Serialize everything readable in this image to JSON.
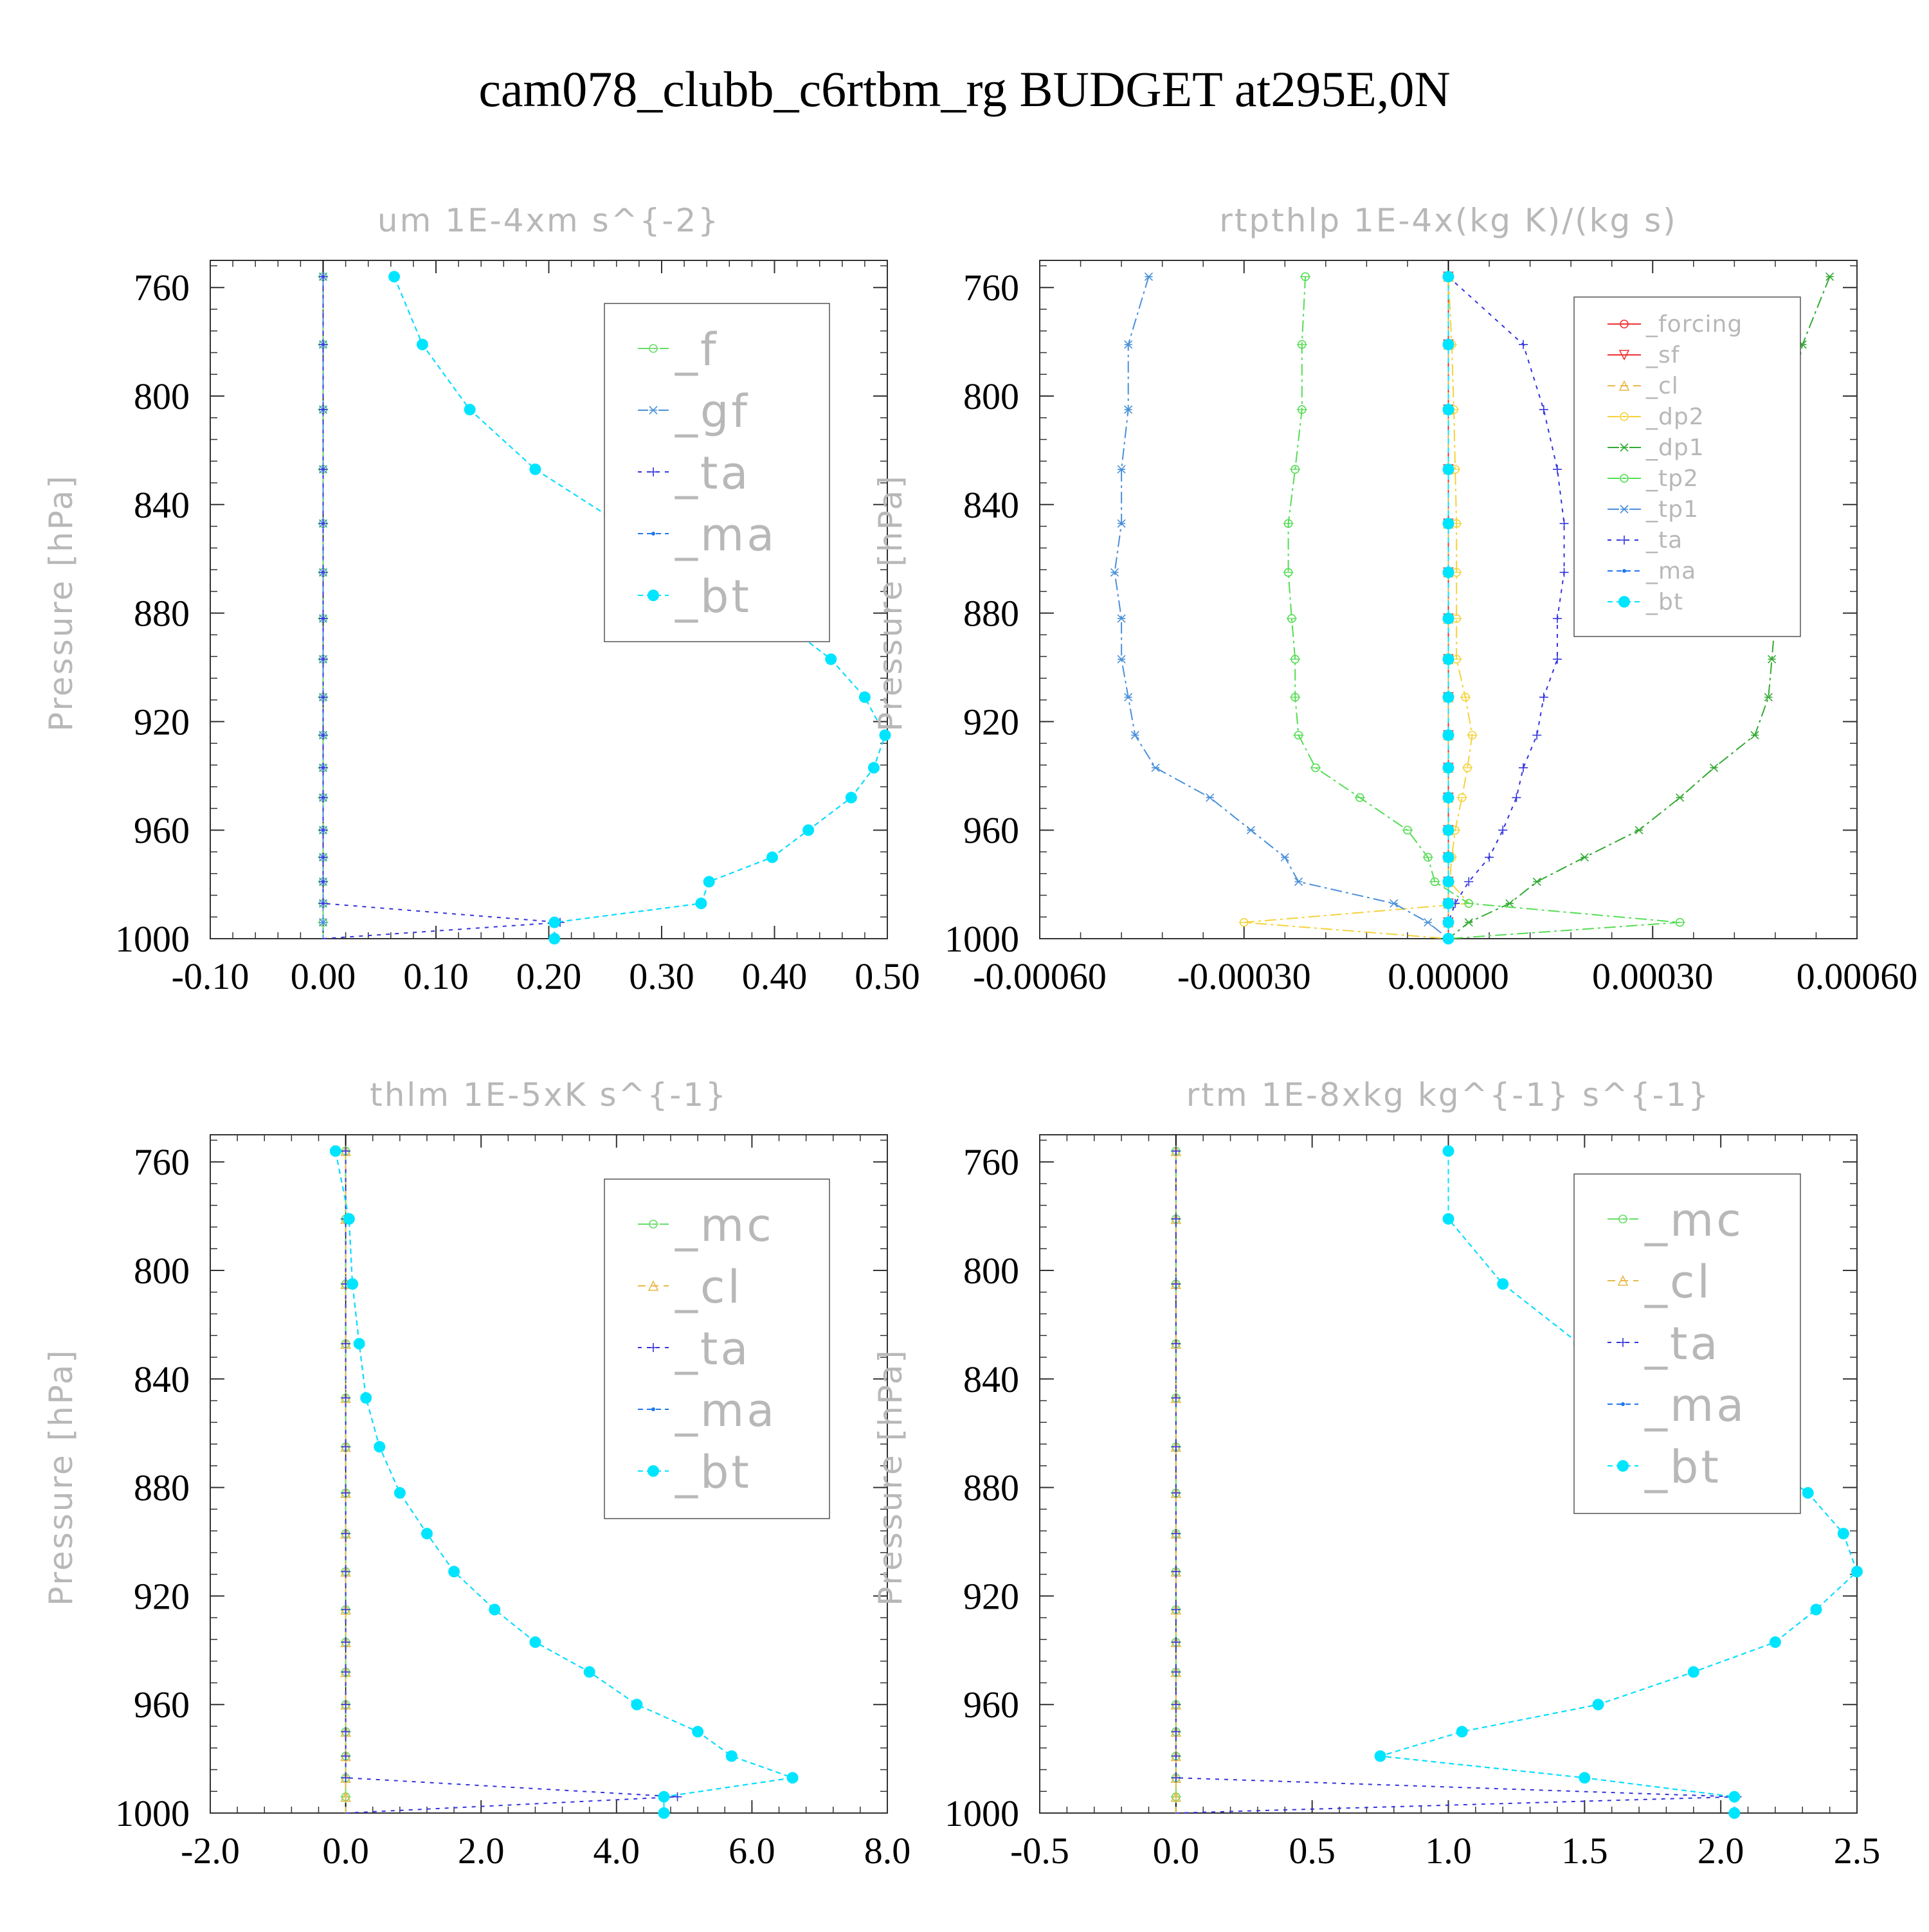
{
  "title": "cam078_clubb_c6rtbm_rg  BUDGET at295E,0N",
  "colors": {
    "f": "#66dd66",
    "gf": "#4a90d9",
    "ta": "#3333dd",
    "ma": "#2277ee",
    "bt": "#00e5ff",
    "forcing": "#ee3333",
    "sf": "#ee3333",
    "cl": "#e8b84a",
    "dp2": "#f5d23a",
    "dp1": "#33aa33",
    "tp2": "#55dd55",
    "tp1": "#4a90d9",
    "mc": "#66dd66",
    "frame": "#333333",
    "muted_text": "#b8b8b8"
  },
  "chart_data": [
    {
      "type": "line",
      "title": "um   1E-4xm s^{-2}",
      "ylabel": "Pressure [hPa]",
      "ylim": [
        1000,
        750
      ],
      "xlim": [
        -0.1,
        0.5
      ],
      "xticks": [
        "-0.10",
        "0.00",
        "0.10",
        "0.20",
        "0.30",
        "0.40",
        "0.50"
      ],
      "xtick_values": [
        -0.1,
        0.0,
        0.1,
        0.2,
        0.3,
        0.4,
        0.5
      ],
      "yticks": [
        "760",
        "800",
        "840",
        "880",
        "920",
        "960",
        "1000"
      ],
      "ytick_values": [
        760,
        800,
        840,
        880,
        920,
        960,
        1000
      ],
      "legend": {
        "placement": "top-right",
        "entries": [
          "_f",
          "_gf",
          "_ta",
          "_ma",
          "_bt"
        ]
      },
      "levels": [
        756,
        781,
        805,
        827,
        847,
        865,
        882,
        897,
        911,
        925,
        937,
        948,
        960,
        970,
        979,
        987,
        994,
        1000
      ],
      "series": [
        {
          "name": "_f",
          "key": "f",
          "values": [
            0,
            0,
            0,
            0,
            0,
            0,
            0,
            0,
            0,
            0,
            0,
            0,
            0,
            0,
            0,
            0,
            0,
            0
          ]
        },
        {
          "name": "_gf",
          "key": "gf",
          "values": [
            0,
            0,
            0,
            0,
            0,
            0,
            0,
            0,
            0,
            0,
            0,
            0,
            0,
            0,
            0,
            0,
            0,
            0
          ]
        },
        {
          "name": "_ta",
          "key": "ta",
          "values": [
            0,
            0,
            0,
            0,
            0,
            0,
            0,
            0,
            0,
            0,
            0,
            0,
            0,
            0,
            0,
            0,
            0.21,
            0.0
          ]
        },
        {
          "name": "_ma",
          "key": "ma",
          "values": [
            0.063,
            0.088,
            0.13,
            0.188,
            0.263,
            0.338,
            0.403,
            0.45,
            0.48,
            0.498,
            0.488,
            0.468,
            0.43,
            0.398,
            0.342,
            0.335,
            0.205,
            0.205
          ]
        },
        {
          "name": "_bt",
          "key": "bt",
          "values": [
            0.063,
            0.088,
            0.13,
            0.188,
            0.263,
            0.338,
            0.403,
            0.45,
            0.48,
            0.498,
            0.488,
            0.468,
            0.43,
            0.398,
            0.342,
            0.335,
            0.205,
            0.205
          ]
        }
      ]
    },
    {
      "type": "line",
      "title": "rtpthlp   1E-4x(kg K)/(kg s)",
      "ylabel": "Pressure [hPa]",
      "ylim": [
        1000,
        750
      ],
      "xlim": [
        -0.0006,
        0.0006
      ],
      "xticks": [
        "-0.00060",
        "-0.00030",
        "0.00000",
        "0.00030",
        "0.00060"
      ],
      "xtick_values": [
        -0.0006,
        -0.0003,
        0.0,
        0.0003,
        0.0006
      ],
      "yticks": [
        "760",
        "800",
        "840",
        "880",
        "920",
        "960",
        "1000"
      ],
      "ytick_values": [
        760,
        800,
        840,
        880,
        920,
        960,
        1000
      ],
      "legend": {
        "placement": "top-right",
        "entries": [
          "_forcing",
          "_sf",
          "_cl",
          "_dp2",
          "_dp1",
          "_tp2",
          "_tp1",
          "_ta",
          "_ma",
          "_bt"
        ]
      },
      "levels": [
        756,
        781,
        805,
        827,
        847,
        865,
        882,
        897,
        911,
        925,
        937,
        948,
        960,
        970,
        979,
        987,
        994,
        1000
      ],
      "series": [
        {
          "name": "_forcing",
          "key": "forcing",
          "values": [
            0,
            0,
            0,
            0,
            0,
            0,
            0,
            0,
            0,
            0,
            0,
            0,
            0,
            0,
            0,
            0,
            0,
            0
          ]
        },
        {
          "name": "_sf",
          "key": "sf",
          "values": [
            0,
            0,
            0,
            0,
            0,
            0,
            0,
            0,
            0,
            0,
            0,
            0,
            0,
            0,
            0,
            0,
            0,
            0
          ]
        },
        {
          "name": "_cl",
          "key": "cl",
          "values": [
            0,
            0,
            0,
            0,
            0,
            0,
            0,
            0,
            0,
            0,
            0,
            0,
            0,
            0,
            0,
            0,
            0,
            0
          ]
        },
        {
          "name": "_dp2",
          "key": "dp2",
          "values": [
            0,
            5e-06,
            8e-06,
            1e-05,
            1.2e-05,
            1.2e-05,
            1.2e-05,
            1.2e-05,
            2.5e-05,
            3.5e-05,
            2.8e-05,
            2e-05,
            1e-05,
            5e-06,
            2e-06,
            3e-05,
            -0.0003,
            0
          ]
        },
        {
          "name": "_dp1",
          "key": "dp1",
          "values": [
            0.00056,
            0.00052,
            0.0005,
            0.00049,
            0.00048,
            0.00048,
            0.00048,
            0.000475,
            0.00047,
            0.00045,
            0.00039,
            0.00034,
            0.00028,
            0.0002,
            0.00013,
            9e-05,
            3e-05,
            0
          ]
        },
        {
          "name": "_tp2",
          "key": "tp2",
          "values": [
            -0.00021,
            -0.000215,
            -0.000215,
            -0.000225,
            -0.000235,
            -0.000235,
            -0.00023,
            -0.000225,
            -0.000225,
            -0.00022,
            -0.000195,
            -0.00013,
            -6e-05,
            -3e-05,
            -2e-05,
            3e-05,
            0.00034,
            0
          ]
        },
        {
          "name": "_tp1",
          "key": "tp1",
          "values": [
            -0.00044,
            -0.00047,
            -0.00047,
            -0.00048,
            -0.00048,
            -0.00049,
            -0.00048,
            -0.00048,
            -0.00047,
            -0.00046,
            -0.00043,
            -0.00035,
            -0.00029,
            -0.00024,
            -0.00022,
            -8e-05,
            -3e-05,
            0
          ]
        },
        {
          "name": "_ta",
          "key": "ta",
          "values": [
            0,
            0.00011,
            0.00014,
            0.00016,
            0.00017,
            0.00017,
            0.00016,
            0.00016,
            0.00014,
            0.00013,
            0.00011,
            0.0001,
            8e-05,
            6e-05,
            3e-05,
            1e-05,
            0,
            0
          ]
        },
        {
          "name": "_ma",
          "key": "ma",
          "values": [
            0,
            0,
            0,
            0,
            0,
            0,
            0,
            0,
            0,
            0,
            0,
            0,
            0,
            0,
            0,
            0,
            0,
            0
          ]
        },
        {
          "name": "_bt",
          "key": "bt",
          "values": [
            0,
            0,
            0,
            0,
            0,
            0,
            0,
            0,
            0,
            0,
            0,
            0,
            0,
            0,
            0,
            0,
            0,
            0
          ]
        }
      ]
    },
    {
      "type": "line",
      "title": "thlm   1E-5xK s^{-1}",
      "ylabel": "Pressure [hPa]",
      "ylim": [
        1000,
        750
      ],
      "xlim": [
        -2.0,
        8.0
      ],
      "xticks": [
        "-2.0",
        "0.0",
        "2.0",
        "4.0",
        "6.0",
        "8.0"
      ],
      "xtick_values": [
        -2.0,
        0.0,
        2.0,
        4.0,
        6.0,
        8.0
      ],
      "yticks": [
        "760",
        "800",
        "840",
        "880",
        "920",
        "960",
        "1000"
      ],
      "ytick_values": [
        760,
        800,
        840,
        880,
        920,
        960,
        1000
      ],
      "legend": {
        "placement": "top-right",
        "entries": [
          "_mc",
          "_cl",
          "_ta",
          "_ma",
          "_bt"
        ]
      },
      "levels": [
        756,
        781,
        805,
        827,
        847,
        865,
        882,
        897,
        911,
        925,
        937,
        948,
        960,
        970,
        979,
        987,
        994,
        1000
      ],
      "series": [
        {
          "name": "_mc",
          "key": "mc",
          "values": [
            0,
            0,
            0,
            0,
            0,
            0,
            0,
            0,
            0,
            0,
            0,
            0,
            0,
            0,
            0,
            0,
            0,
            0
          ]
        },
        {
          "name": "_cl",
          "key": "cl",
          "values": [
            0,
            0,
            0,
            0,
            0,
            0,
            0,
            0,
            0,
            0,
            0,
            0,
            0,
            0,
            0,
            0,
            0,
            0
          ]
        },
        {
          "name": "_ta",
          "key": "ta",
          "values": [
            0,
            0,
            0,
            0,
            0,
            0,
            0,
            0,
            0,
            0,
            0,
            0,
            0,
            0,
            0,
            0,
            4.9,
            0
          ]
        },
        {
          "name": "_ma",
          "key": "ma",
          "values": [
            -0.15,
            0.05,
            0.1,
            0.2,
            0.3,
            0.5,
            0.8,
            1.2,
            1.6,
            2.2,
            2.8,
            3.6,
            4.3,
            5.2,
            5.7,
            6.6,
            4.7,
            4.7
          ]
        },
        {
          "name": "_bt",
          "key": "bt",
          "values": [
            -0.15,
            0.05,
            0.1,
            0.2,
            0.3,
            0.5,
            0.8,
            1.2,
            1.6,
            2.2,
            2.8,
            3.6,
            4.3,
            5.2,
            5.7,
            6.6,
            4.7,
            4.7
          ]
        }
      ]
    },
    {
      "type": "line",
      "title": "rtm   1E-8xkg kg^{-1} s^{-1}",
      "ylabel": "Pressure [hPa]",
      "ylim": [
        1000,
        750
      ],
      "xlim": [
        -0.5,
        2.5
      ],
      "xticks": [
        "-0.5",
        "0.0",
        "0.5",
        "1.0",
        "1.5",
        "2.0",
        "2.5"
      ],
      "xtick_values": [
        -0.5,
        0.0,
        0.5,
        1.0,
        1.5,
        2.0,
        2.5
      ],
      "yticks": [
        "760",
        "800",
        "840",
        "880",
        "920",
        "960",
        "1000"
      ],
      "ytick_values": [
        760,
        800,
        840,
        880,
        920,
        960,
        1000
      ],
      "legend": {
        "placement": "top-right",
        "entries": [
          "_mc",
          "_cl",
          "_ta",
          "_ma",
          "_bt"
        ]
      },
      "levels": [
        756,
        781,
        805,
        827,
        847,
        865,
        882,
        897,
        911,
        925,
        937,
        948,
        960,
        970,
        979,
        987,
        994,
        1000
      ],
      "series": [
        {
          "name": "_mc",
          "key": "mc",
          "values": [
            0,
            0,
            0,
            0,
            0,
            0,
            0,
            0,
            0,
            0,
            0,
            0,
            0,
            0,
            0,
            0,
            0,
            0
          ]
        },
        {
          "name": "_cl",
          "key": "cl",
          "values": [
            0,
            0,
            0,
            0,
            0,
            0,
            0,
            0,
            0,
            0,
            0,
            0,
            0,
            0,
            0,
            0,
            0,
            0
          ]
        },
        {
          "name": "_ta",
          "key": "ta",
          "values": [
            0,
            0,
            0,
            0,
            0,
            0,
            0,
            0,
            0,
            0,
            0,
            0,
            0,
            0,
            0,
            0,
            2.06,
            0
          ]
        },
        {
          "name": "_ma",
          "key": "ma",
          "values": [
            1.0,
            1.0,
            1.2,
            1.48,
            1.8,
            2.08,
            2.32,
            2.45,
            2.5,
            2.35,
            2.2,
            1.9,
            1.55,
            1.05,
            0.75,
            1.5,
            2.05,
            2.05
          ]
        },
        {
          "name": "_bt",
          "key": "bt",
          "values": [
            1.0,
            1.0,
            1.2,
            1.48,
            1.8,
            2.08,
            2.32,
            2.45,
            2.5,
            2.35,
            2.2,
            1.9,
            1.55,
            1.05,
            0.75,
            1.5,
            2.05,
            2.05
          ]
        }
      ]
    }
  ]
}
